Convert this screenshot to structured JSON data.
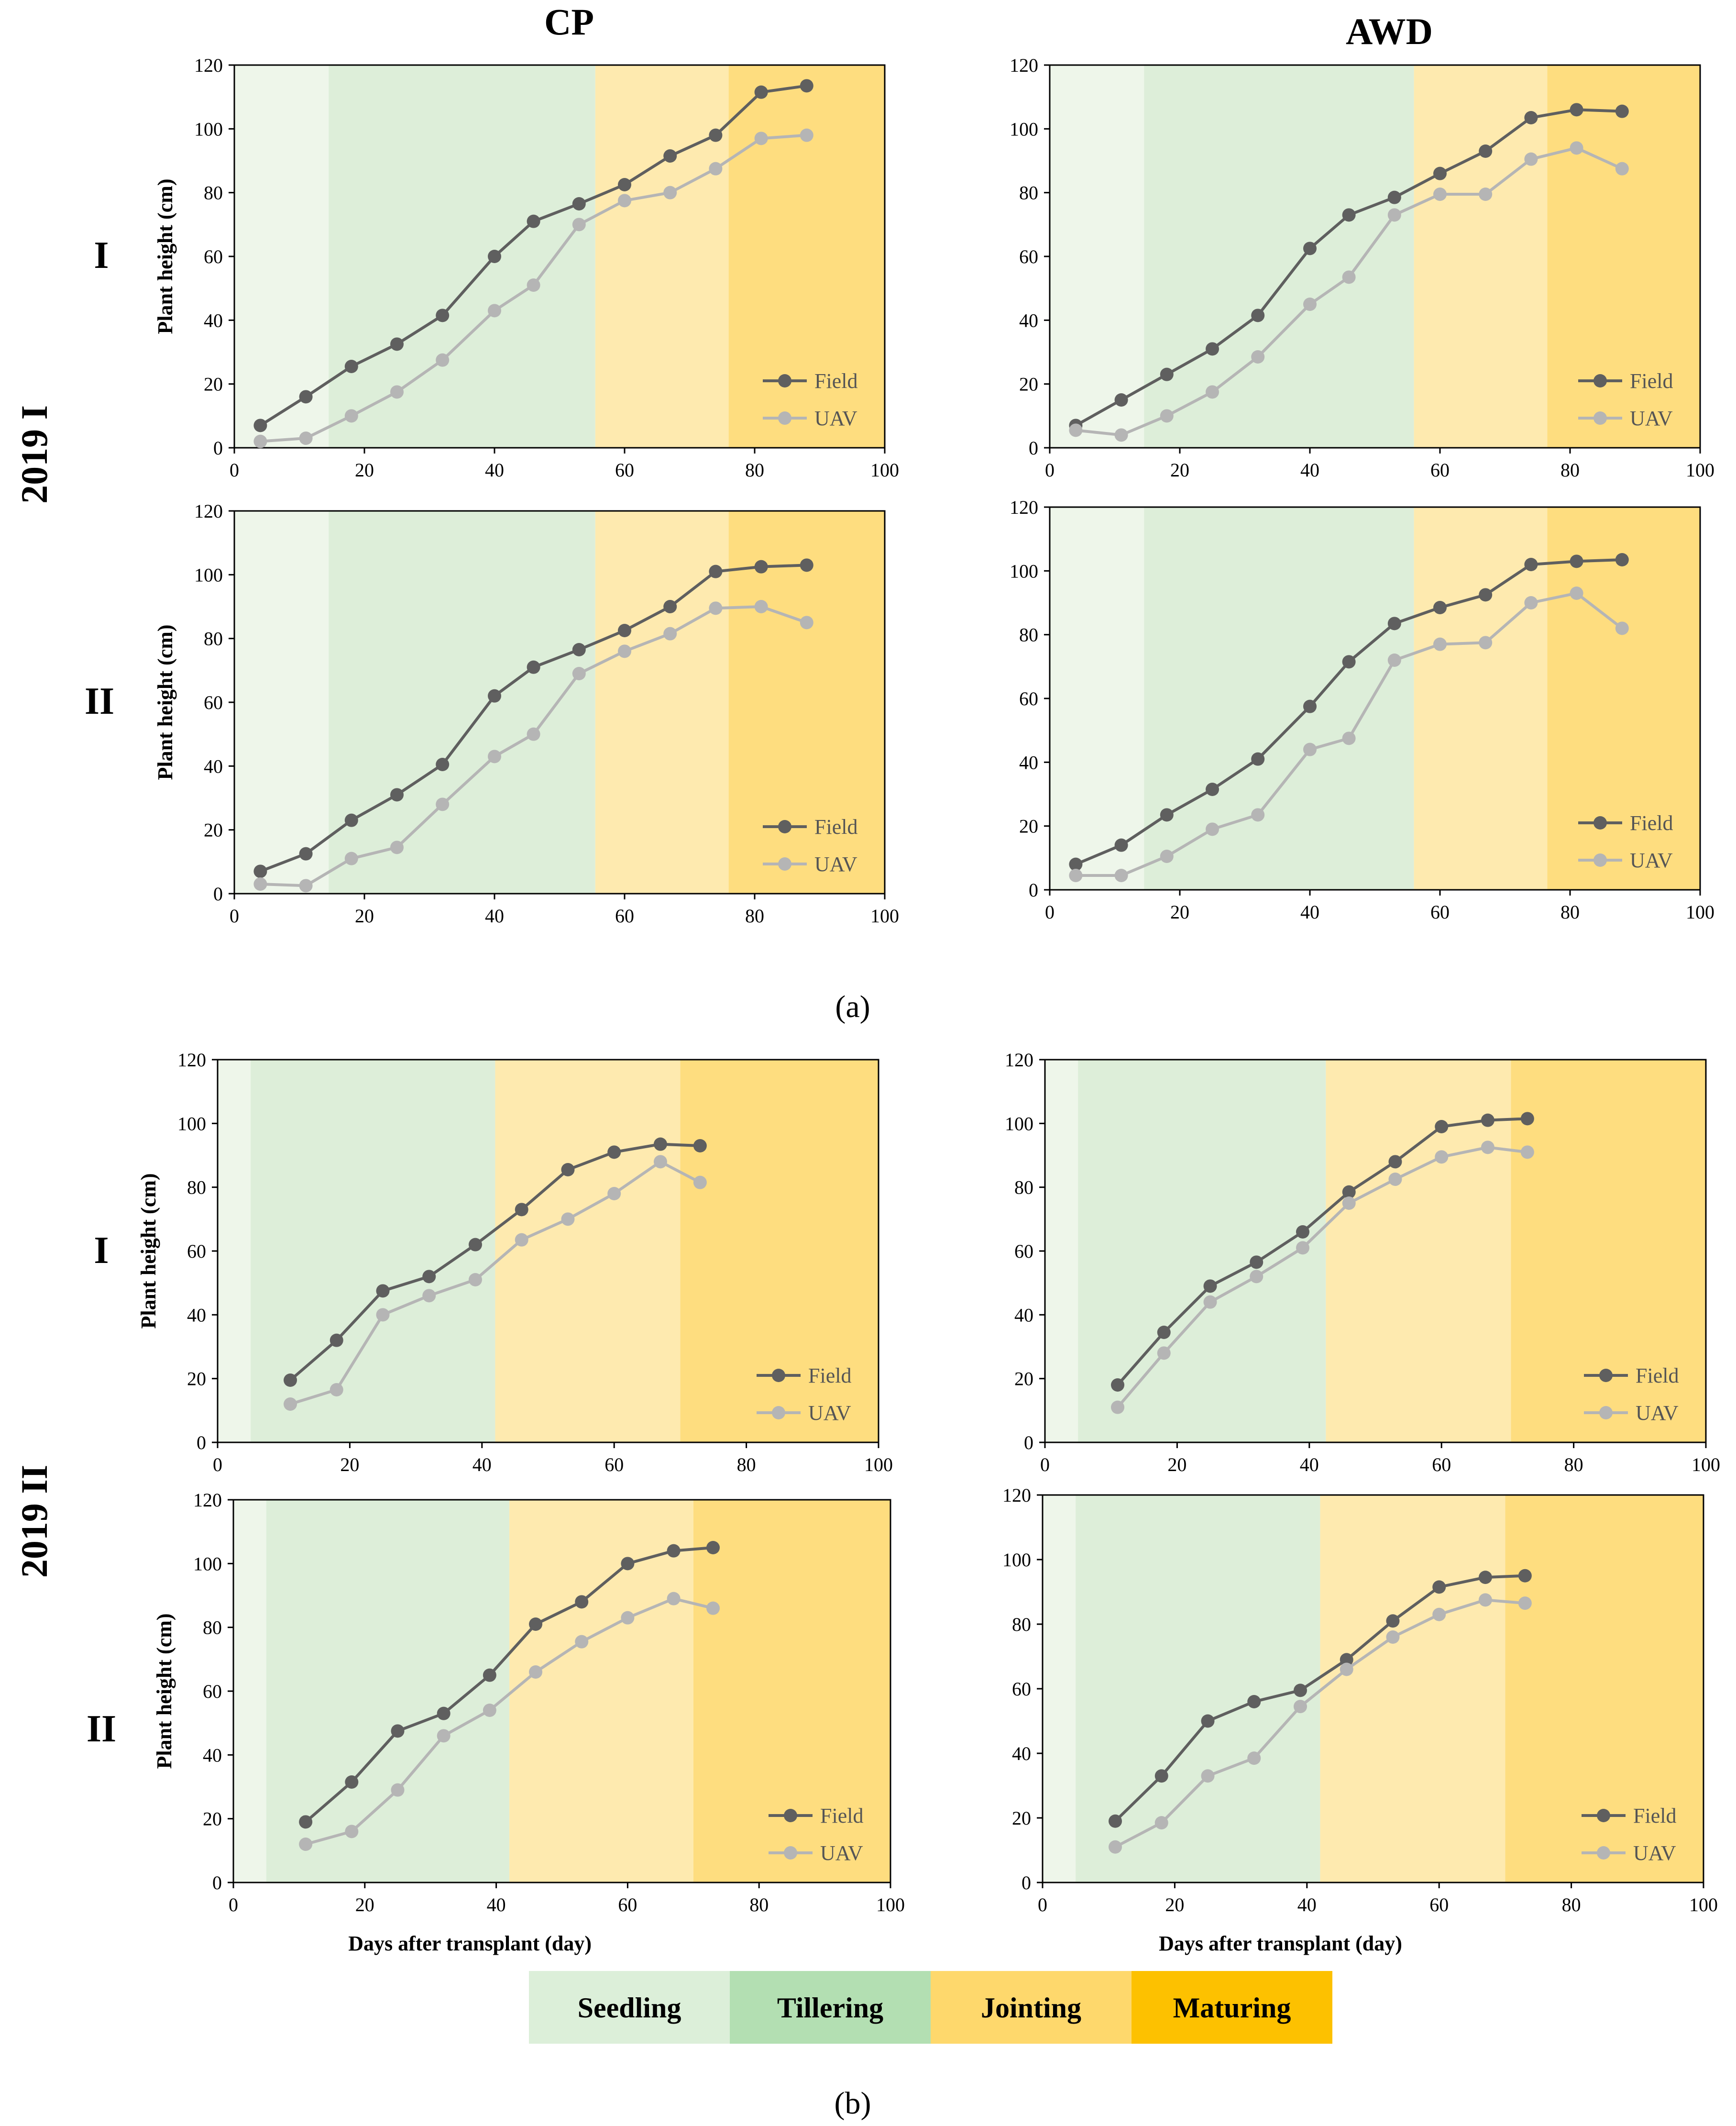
{
  "figure": {
    "col_labels": [
      "CP",
      "AWD"
    ],
    "row_labels": [
      "I",
      "II",
      "I",
      "II"
    ],
    "section_labels": [
      "2019 I",
      "2019 II"
    ],
    "panel_labels": [
      "(a)",
      "(b)"
    ],
    "stage_legend": [
      "Seedling",
      "Tillering",
      "Jointing",
      "Maturing"
    ],
    "colors": {
      "field_line": "#5f5f5f",
      "uav_line": "#b5b5b5",
      "bg_seedling": "#eef6ea",
      "bg_tillering": "#ddeed9",
      "bg_jointing": "#feeaaf",
      "bg_maturing": "#fedd7f",
      "legend_seedling": "#dcefd9",
      "legend_tillering": "#b3dfb2",
      "legend_jointing": "#fed86c",
      "legend_maturing": "#fdc100"
    }
  },
  "chart_data": [
    {
      "type": "line",
      "section": "2019 I",
      "treatment": "CP",
      "replicate": "I",
      "xlim": [
        0,
        100
      ],
      "ylim": [
        0,
        120
      ],
      "xticks": [
        0,
        20,
        40,
        60,
        80,
        100
      ],
      "yticks": [
        0,
        20,
        40,
        60,
        80,
        100,
        120
      ],
      "ylabel": "Plant height (cm)",
      "xlabel": "",
      "stages": [
        0,
        14.5,
        55.5,
        76,
        100
      ],
      "series": [
        {
          "name": "Field",
          "x": [
            4,
            11,
            18,
            25,
            32,
            40,
            46,
            53,
            60,
            67,
            74,
            81,
            88
          ],
          "y": [
            7,
            16,
            25.5,
            32.5,
            41.5,
            60,
            71,
            76.5,
            82.5,
            91.5,
            98,
            111.5,
            113.5
          ]
        },
        {
          "name": "UAV",
          "x": [
            4,
            11,
            18,
            25,
            32,
            40,
            46,
            53,
            60,
            67,
            74,
            81,
            88
          ],
          "y": [
            2,
            3,
            10,
            17.5,
            27.5,
            43,
            51,
            70,
            77.5,
            80,
            87.5,
            97,
            98
          ]
        }
      ],
      "legend": "bottom-right"
    },
    {
      "type": "line",
      "section": "2019 I",
      "treatment": "AWD",
      "replicate": "I",
      "xlim": [
        0,
        100
      ],
      "ylim": [
        0,
        120
      ],
      "xticks": [
        0,
        20,
        40,
        60,
        80,
        100
      ],
      "yticks": [
        0,
        20,
        40,
        60,
        80,
        100,
        120
      ],
      "ylabel": "",
      "xlabel": "",
      "stages": [
        0,
        14.5,
        56,
        76.5,
        100
      ],
      "series": [
        {
          "name": "Field",
          "x": [
            4,
            11,
            18,
            25,
            32,
            40,
            46,
            53,
            60,
            67,
            74,
            81,
            88
          ],
          "y": [
            7,
            15,
            23,
            31,
            41.5,
            62.5,
            73,
            78.5,
            86,
            93,
            103.5,
            106,
            105.5
          ]
        },
        {
          "name": "UAV",
          "x": [
            4,
            11,
            18,
            25,
            32,
            40,
            46,
            53,
            60,
            67,
            74,
            81,
            88
          ],
          "y": [
            5.5,
            4,
            10,
            17.5,
            28.5,
            45,
            53.5,
            73,
            79.5,
            79.5,
            90.5,
            94,
            87.5
          ]
        }
      ],
      "legend": "bottom-right"
    },
    {
      "type": "line",
      "section": "2019 I",
      "treatment": "CP",
      "replicate": "II",
      "xlim": [
        0,
        100
      ],
      "ylim": [
        0,
        120
      ],
      "xticks": [
        0,
        20,
        40,
        60,
        80,
        100
      ],
      "yticks": [
        0,
        20,
        40,
        60,
        80,
        100,
        120
      ],
      "ylabel": "Plant height (cm)",
      "xlabel": "",
      "stages": [
        0,
        14.5,
        55.5,
        76,
        100
      ],
      "series": [
        {
          "name": "Field",
          "x": [
            4,
            11,
            18,
            25,
            32,
            40,
            46,
            53,
            60,
            67,
            74,
            81,
            88
          ],
          "y": [
            7,
            12.5,
            23,
            31,
            40.5,
            62,
            71,
            76.5,
            82.5,
            90,
            101,
            102.5,
            103
          ]
        },
        {
          "name": "UAV",
          "x": [
            4,
            11,
            18,
            25,
            32,
            40,
            46,
            53,
            60,
            67,
            74,
            81,
            88
          ],
          "y": [
            3,
            2.5,
            11,
            14.5,
            28,
            43,
            50,
            69,
            76,
            81.5,
            89.5,
            90,
            85
          ]
        }
      ],
      "legend": "bottom-right"
    },
    {
      "type": "line",
      "section": "2019 I",
      "treatment": "AWD",
      "replicate": "II",
      "xlim": [
        0,
        100
      ],
      "ylim": [
        0,
        120
      ],
      "xticks": [
        0,
        20,
        40,
        60,
        80,
        100
      ],
      "yticks": [
        0,
        20,
        40,
        60,
        80,
        100,
        120
      ],
      "ylabel": "",
      "xlabel": "",
      "stages": [
        0,
        14.5,
        56,
        76.5,
        100
      ],
      "series": [
        {
          "name": "Field",
          "x": [
            4,
            11,
            18,
            25,
            32,
            40,
            46,
            53,
            60,
            67,
            74,
            81,
            88
          ],
          "y": [
            8,
            14,
            23.5,
            31.5,
            41,
            57.5,
            71.5,
            83.5,
            88.5,
            92.5,
            102,
            103,
            103.5
          ]
        },
        {
          "name": "UAV",
          "x": [
            4,
            11,
            18,
            25,
            32,
            40,
            46,
            53,
            60,
            67,
            74,
            81,
            88
          ],
          "y": [
            4.5,
            4.5,
            10.5,
            19,
            23.5,
            44,
            47.5,
            72,
            77,
            77.5,
            90,
            93,
            82
          ]
        }
      ],
      "legend": "bottom-right"
    },
    {
      "type": "line",
      "section": "2019 II",
      "treatment": "CP",
      "replicate": "I",
      "xlim": [
        0,
        100
      ],
      "ylim": [
        0,
        120
      ],
      "xticks": [
        0,
        20,
        40,
        60,
        80,
        100
      ],
      "yticks": [
        0,
        20,
        40,
        60,
        80,
        100,
        120
      ],
      "ylabel": "Plant height (cm)",
      "xlabel": "",
      "stages": [
        0,
        5,
        42,
        70,
        100
      ],
      "series": [
        {
          "name": "Field",
          "x": [
            11,
            18,
            25,
            32,
            39,
            46,
            53,
            60,
            67,
            73
          ],
          "y": [
            19.5,
            32,
            47.5,
            52,
            62,
            73,
            85.5,
            91,
            93.5,
            93
          ]
        },
        {
          "name": "UAV",
          "x": [
            11,
            18,
            25,
            32,
            39,
            46,
            53,
            60,
            67,
            73
          ],
          "y": [
            12,
            16.5,
            40,
            46,
            51,
            63.5,
            70,
            78,
            88,
            81.5
          ]
        }
      ],
      "legend": "bottom-right"
    },
    {
      "type": "line",
      "section": "2019 II",
      "treatment": "AWD",
      "replicate": "I",
      "xlim": [
        0,
        100
      ],
      "ylim": [
        0,
        120
      ],
      "xticks": [
        0,
        20,
        40,
        60,
        80,
        100
      ],
      "yticks": [
        0,
        20,
        40,
        60,
        80,
        100,
        120
      ],
      "ylabel": "",
      "xlabel": "",
      "stages": [
        0,
        5,
        42.5,
        70.5,
        100
      ],
      "series": [
        {
          "name": "Field",
          "x": [
            11,
            18,
            25,
            32,
            39,
            46,
            53,
            60,
            67,
            73
          ],
          "y": [
            18,
            34.5,
            49,
            56.5,
            66,
            78.5,
            88,
            99,
            101,
            101.5
          ]
        },
        {
          "name": "UAV",
          "x": [
            11,
            18,
            25,
            32,
            39,
            46,
            53,
            60,
            67,
            73
          ],
          "y": [
            11,
            28,
            44,
            52,
            61,
            75,
            82.5,
            89.5,
            92.5,
            91
          ]
        }
      ],
      "legend": "bottom-right"
    },
    {
      "type": "line",
      "section": "2019 II",
      "treatment": "CP",
      "replicate": "II",
      "xlim": [
        0,
        100
      ],
      "ylim": [
        0,
        120
      ],
      "xticks": [
        0,
        20,
        40,
        60,
        80,
        100
      ],
      "yticks": [
        0,
        20,
        40,
        60,
        80,
        100,
        120
      ],
      "ylabel": "Plant height (cm)",
      "xlabel": "Days after transplant  (day)",
      "stages": [
        0,
        5,
        42,
        70,
        100
      ],
      "series": [
        {
          "name": "Field",
          "x": [
            11,
            18,
            25,
            32,
            39,
            46,
            53,
            60,
            67,
            73
          ],
          "y": [
            19,
            31.5,
            47.5,
            53,
            65,
            81,
            88,
            100,
            104,
            105
          ]
        },
        {
          "name": "UAV",
          "x": [
            11,
            18,
            25,
            32,
            39,
            46,
            53,
            60,
            67,
            73
          ],
          "y": [
            12,
            16,
            29,
            46,
            54,
            66,
            75.5,
            83,
            89,
            86
          ]
        }
      ],
      "legend": "bottom-right"
    },
    {
      "type": "line",
      "section": "2019 II",
      "treatment": "AWD",
      "replicate": "II",
      "xlim": [
        0,
        100
      ],
      "ylim": [
        0,
        120
      ],
      "xticks": [
        0,
        20,
        40,
        60,
        80,
        100
      ],
      "yticks": [
        0,
        20,
        40,
        60,
        80,
        100,
        120
      ],
      "ylabel": "",
      "xlabel": "Days after transplant  (day)",
      "stages": [
        0,
        5,
        42,
        70,
        100
      ],
      "series": [
        {
          "name": "Field",
          "x": [
            11,
            18,
            25,
            32,
            39,
            46,
            53,
            60,
            67,
            73
          ],
          "y": [
            19,
            33,
            50,
            56,
            59.5,
            69,
            81,
            91.5,
            94.5,
            95
          ]
        },
        {
          "name": "UAV",
          "x": [
            11,
            18,
            25,
            32,
            39,
            46,
            53,
            60,
            67,
            73
          ],
          "y": [
            11,
            18.5,
            33,
            38.5,
            54.5,
            66,
            76,
            83,
            87.5,
            86.5
          ]
        }
      ],
      "legend": "bottom-right"
    }
  ]
}
